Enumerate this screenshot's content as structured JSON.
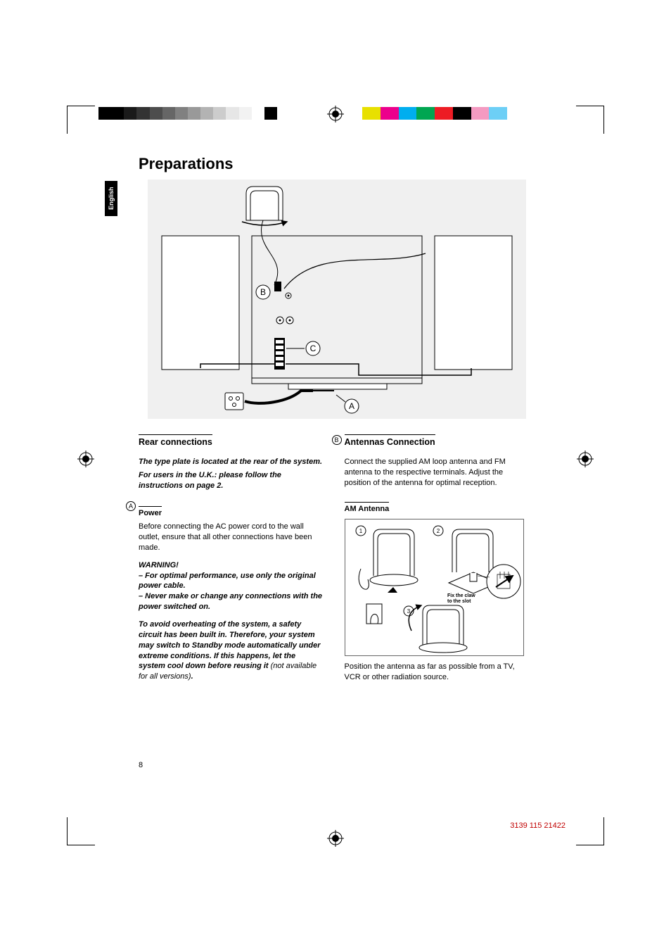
{
  "page": {
    "title": "Preparations",
    "language_tab": "English",
    "page_number": "8",
    "doc_id": "3139 115 21422"
  },
  "colorbar_left": [
    "#000000",
    "#000000",
    "#1a1a1a",
    "#333333",
    "#4d4d4d",
    "#666666",
    "#808080",
    "#999999",
    "#b3b3b3",
    "#cccccc",
    "#e6e6e6",
    "#f2f2f2",
    "#ffffff",
    "#000000",
    "#ffffff"
  ],
  "colorbar_right": [
    "#e8e000",
    "#ec008c",
    "#00aeef",
    "#00a651",
    "#ed1c24",
    "#000000",
    "#f49ac1",
    "#6dcff6",
    "#ffffff"
  ],
  "diagram": {
    "labels": {
      "A": "A",
      "B": "B",
      "C": "C"
    },
    "bg_color": "#f0f0f0",
    "stroke": "#000000"
  },
  "left_col": {
    "section_head": "Rear connections",
    "type_plate": "The type plate is located at the rear of the system.",
    "uk_note": "For users in the U.K.: please follow the instructions on page 2.",
    "power_label": "A",
    "power_head": "Power",
    "power_body": "Before connecting the AC power cord to the wall outlet, ensure that all other connections have been made.",
    "warning_head": "WARNING!",
    "warning1": "–  For optimal performance, use only the original power cable.",
    "warning2": "–  Never make or change any connections with the power switched on.",
    "overheat": "To avoid overheating of the system, a safety circuit has been built in.  Therefore, your system may switch to Standby mode automatically under extreme conditions.  If this happens, let the system cool down before reusing it",
    "overheat_suffix": " (not available for all versions)",
    "overheat_end": "."
  },
  "right_col": {
    "ant_label": "B",
    "ant_head": "Antennas Connection",
    "ant_body": "Connect the supplied AM loop antenna and FM antenna to the respective terminals. Adjust the position of the antenna for optimal reception.",
    "am_head": "AM Antenna",
    "am_fig": {
      "step1": "1",
      "step2": "2",
      "step3": "3",
      "note_line1": "Fix the claw",
      "note_line2": "to the slot"
    },
    "am_body": "Position the antenna as far as possible from a TV, VCR or other radiation source."
  }
}
